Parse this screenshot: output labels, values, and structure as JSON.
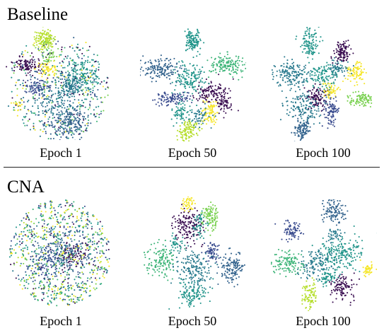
{
  "sections": [
    {
      "title": "Baseline",
      "panels": [
        {
          "label": "Epoch 1"
        },
        {
          "label": "Epoch 50"
        },
        {
          "label": "Epoch 100"
        }
      ]
    },
    {
      "title": "CNA",
      "panels": [
        {
          "label": "Epoch 1"
        },
        {
          "label": "Epoch 50"
        },
        {
          "label": "Epoch 100"
        }
      ]
    }
  ],
  "colors": {
    "dark_purple": "#3b0f52",
    "indigo": "#3b4d8f",
    "blue": "#33638d",
    "teal_blue": "#2a7a8e",
    "teal": "#22958b",
    "green": "#3db478",
    "light_green": "#7ad151",
    "lime": "#b5de2b",
    "yellow": "#f5e62a"
  }
}
